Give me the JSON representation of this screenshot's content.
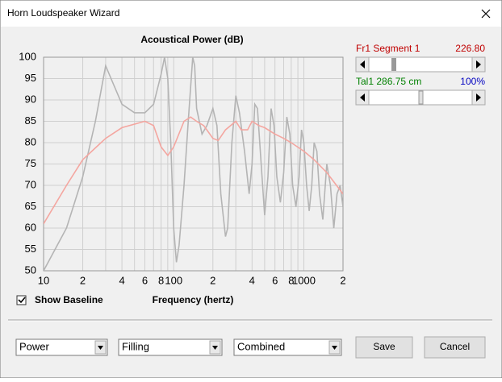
{
  "window": {
    "title": "Horn Loudspeaker Wizard"
  },
  "chart_data": {
    "type": "line",
    "title": "Acoustical Power (dB)",
    "x_label": "Frequency (hertz)",
    "xscale": "log",
    "grid": true,
    "xlim": [
      10,
      2000
    ],
    "ylim": [
      50,
      100
    ],
    "xticks": [
      10,
      {
        "value": 20,
        "label": "2"
      },
      {
        "value": 40,
        "label": "4"
      },
      {
        "value": 60,
        "label": "6"
      },
      {
        "value": 80,
        "label": "8"
      },
      100,
      {
        "value": 200,
        "label": "2"
      },
      {
        "value": 400,
        "label": "4"
      },
      {
        "value": 600,
        "label": "6"
      },
      {
        "value": 800,
        "label": "8"
      },
      1000,
      {
        "value": 2000,
        "label": "2"
      }
    ],
    "xminor": [
      30,
      50,
      70,
      90,
      300,
      500,
      700,
      900
    ],
    "yticks": [
      50,
      55,
      60,
      65,
      70,
      75,
      80,
      85,
      90,
      95,
      100
    ],
    "series": [
      {
        "color": "#b4b4b4",
        "x": [
          10,
          15,
          20,
          25,
          30,
          33,
          40,
          50,
          60,
          70,
          80,
          85,
          90,
          95,
          100,
          105,
          110,
          120,
          130,
          140,
          145,
          150,
          165,
          180,
          200,
          215,
          230,
          250,
          260,
          280,
          300,
          320,
          350,
          380,
          400,
          420,
          440,
          470,
          500,
          530,
          560,
          590,
          620,
          660,
          700,
          740,
          780,
          820,
          870,
          920,
          960,
          1000,
          1050,
          1100,
          1150,
          1200,
          1260,
          1320,
          1400,
          1500,
          1600,
          1700,
          1800,
          1900,
          2000
        ],
        "values": [
          50,
          60,
          72,
          85,
          98,
          95,
          89,
          87,
          87,
          89,
          96,
          100,
          95,
          80,
          60,
          52,
          56,
          70,
          86,
          100,
          98,
          88,
          82,
          84,
          88,
          84,
          68,
          58,
          60,
          80,
          91,
          87,
          78,
          68,
          75,
          89,
          88,
          75,
          63,
          72,
          88,
          84,
          72,
          66,
          73,
          86,
          82,
          70,
          65,
          72,
          83,
          80,
          70,
          64,
          70,
          80,
          78,
          68,
          62,
          75,
          70,
          60,
          68,
          70,
          65
        ]
      },
      {
        "color": "#f4a6a0",
        "x": [
          10,
          15,
          20,
          30,
          40,
          60,
          70,
          80,
          90,
          100,
          120,
          135,
          150,
          170,
          200,
          220,
          250,
          300,
          330,
          370,
          400,
          450,
          500,
          600,
          700,
          800,
          1000,
          1200,
          1500,
          2000
        ],
        "values": [
          61,
          70,
          76,
          81,
          83.5,
          85,
          84,
          79,
          77,
          79,
          85,
          86,
          85,
          84,
          81,
          80.5,
          83,
          85,
          83,
          83,
          85,
          84,
          83.5,
          82,
          81,
          80,
          78,
          76,
          73,
          68
        ]
      }
    ]
  },
  "controls": {
    "segment_label": "Fr1  Segment 1",
    "segment_value": "226.80",
    "tail_label": "Tal1  286.75 cm",
    "tail_value": "100%",
    "checkbox": "Show Baseline",
    "dropdowns": [
      "Power",
      "Filling",
      "Combined"
    ],
    "buttons": [
      "Save",
      "Cancel"
    ]
  }
}
